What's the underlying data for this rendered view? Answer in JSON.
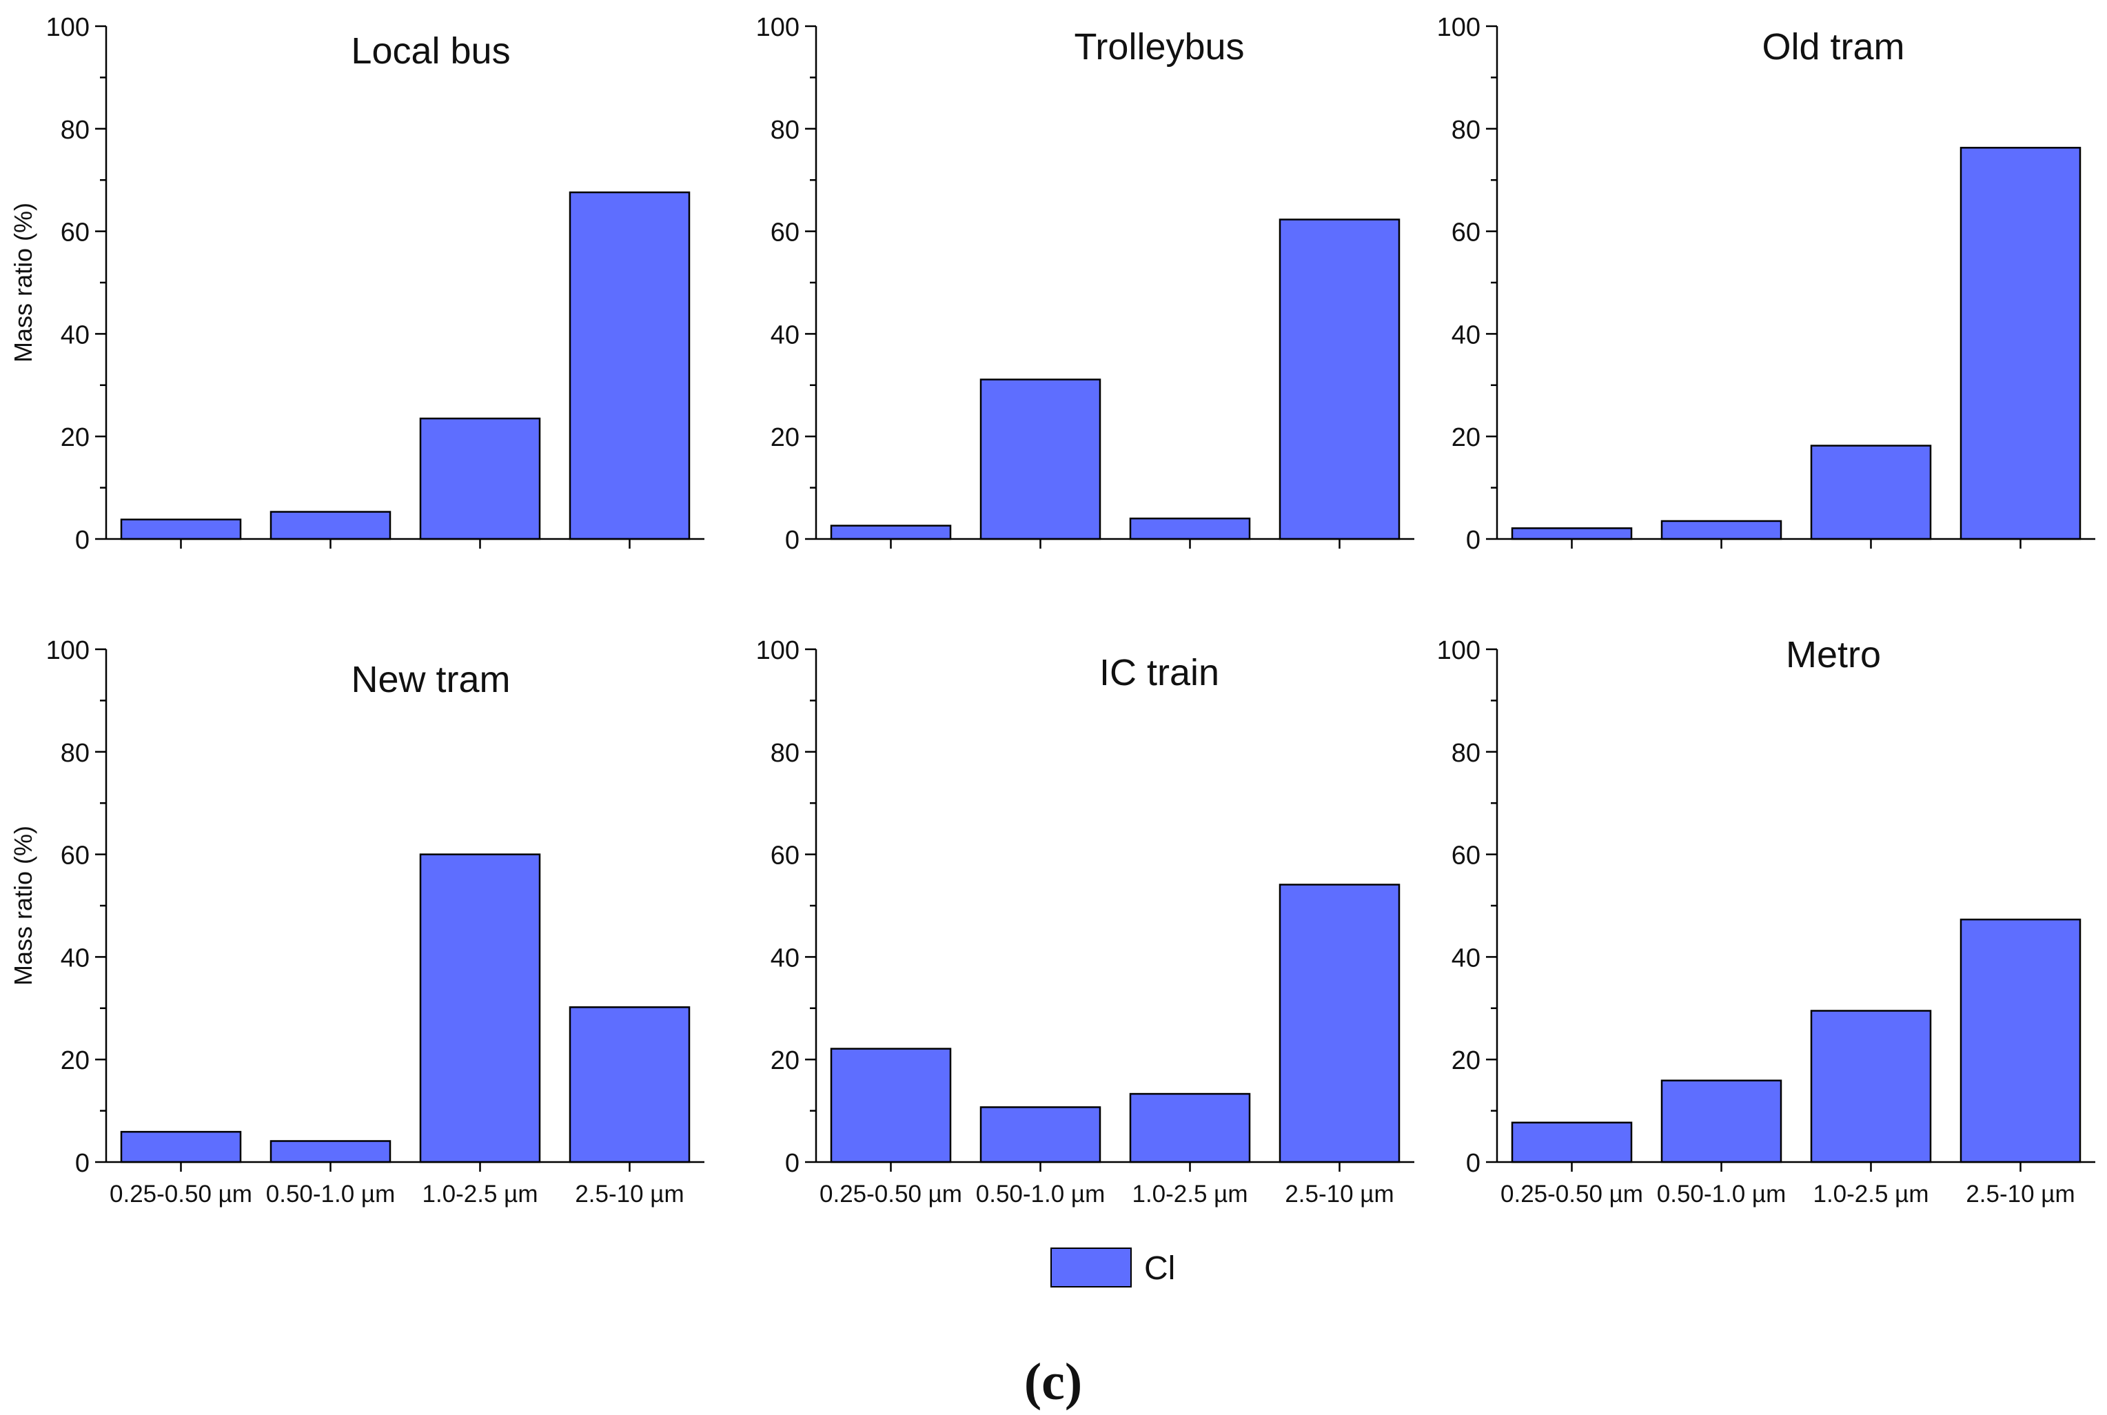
{
  "figure_caption": "(c)",
  "legend": {
    "label": "Cl",
    "color": "#5e6eff"
  },
  "chart_data": [
    {
      "type": "bar",
      "title": "Local bus",
      "ylabel": "Mass ratio (%)",
      "xlabel": "",
      "ylim": [
        0,
        100
      ],
      "yticks": [
        0,
        20,
        40,
        60,
        80,
        100
      ],
      "show_xticklabels": false,
      "categories": [
        "0.25-0.50 µm",
        "0.50-1.0 µm",
        "1.0-2.5 µm",
        "2.5-10 µm"
      ],
      "series": [
        {
          "name": "Cl",
          "values": [
            3.8,
            5.3,
            23.5,
            67.6
          ]
        }
      ]
    },
    {
      "type": "bar",
      "title": "Trolleybus",
      "ylabel": "",
      "xlabel": "",
      "ylim": [
        0,
        100
      ],
      "yticks": [
        0,
        20,
        40,
        60,
        80,
        100
      ],
      "show_xticklabels": false,
      "categories": [
        "0.25-0.50 µm",
        "0.50-1.0 µm",
        "1.0-2.5 µm",
        "2.5-10 µm"
      ],
      "series": [
        {
          "name": "Cl",
          "values": [
            2.6,
            31.1,
            4.0,
            62.3
          ]
        }
      ]
    },
    {
      "type": "bar",
      "title": "Old tram",
      "ylabel": "",
      "xlabel": "",
      "ylim": [
        0,
        100
      ],
      "yticks": [
        0,
        20,
        40,
        60,
        80,
        100
      ],
      "show_xticklabels": false,
      "categories": [
        "0.25-0.50 µm",
        "0.50-1.0 µm",
        "1.0-2.5 µm",
        "2.5-10 µm"
      ],
      "series": [
        {
          "name": "Cl",
          "values": [
            2.1,
            3.5,
            18.2,
            76.3
          ]
        }
      ]
    },
    {
      "type": "bar",
      "title": "New tram",
      "ylabel": "Mass ratio (%)",
      "xlabel": "",
      "ylim": [
        0,
        100
      ],
      "yticks": [
        0,
        20,
        40,
        60,
        80,
        100
      ],
      "show_xticklabels": true,
      "categories": [
        "0.25-0.50 µm",
        "0.50-1.0 µm",
        "1.0-2.5 µm",
        "2.5-10 µm"
      ],
      "series": [
        {
          "name": "Cl",
          "values": [
            5.9,
            4.1,
            60.0,
            30.2
          ]
        }
      ]
    },
    {
      "type": "bar",
      "title": "IC train",
      "ylabel": "",
      "xlabel": "",
      "ylim": [
        0,
        100
      ],
      "yticks": [
        0,
        20,
        40,
        60,
        80,
        100
      ],
      "show_xticklabels": true,
      "categories": [
        "0.25-0.50 µm",
        "0.50-1.0 µm",
        "1.0-2.5 µm",
        "2.5-10 µm"
      ],
      "series": [
        {
          "name": "Cl",
          "values": [
            22.1,
            10.7,
            13.3,
            54.1
          ]
        }
      ]
    },
    {
      "type": "bar",
      "title": "Metro",
      "ylabel": "",
      "xlabel": "",
      "ylim": [
        0,
        100
      ],
      "yticks": [
        0,
        20,
        40,
        60,
        80,
        100
      ],
      "show_xticklabels": true,
      "categories": [
        "0.25-0.50 µm",
        "0.50-1.0 µm",
        "1.0-2.5 µm",
        "2.5-10 µm"
      ],
      "series": [
        {
          "name": "Cl",
          "values": [
            7.7,
            15.9,
            29.5,
            47.3
          ]
        }
      ]
    }
  ]
}
